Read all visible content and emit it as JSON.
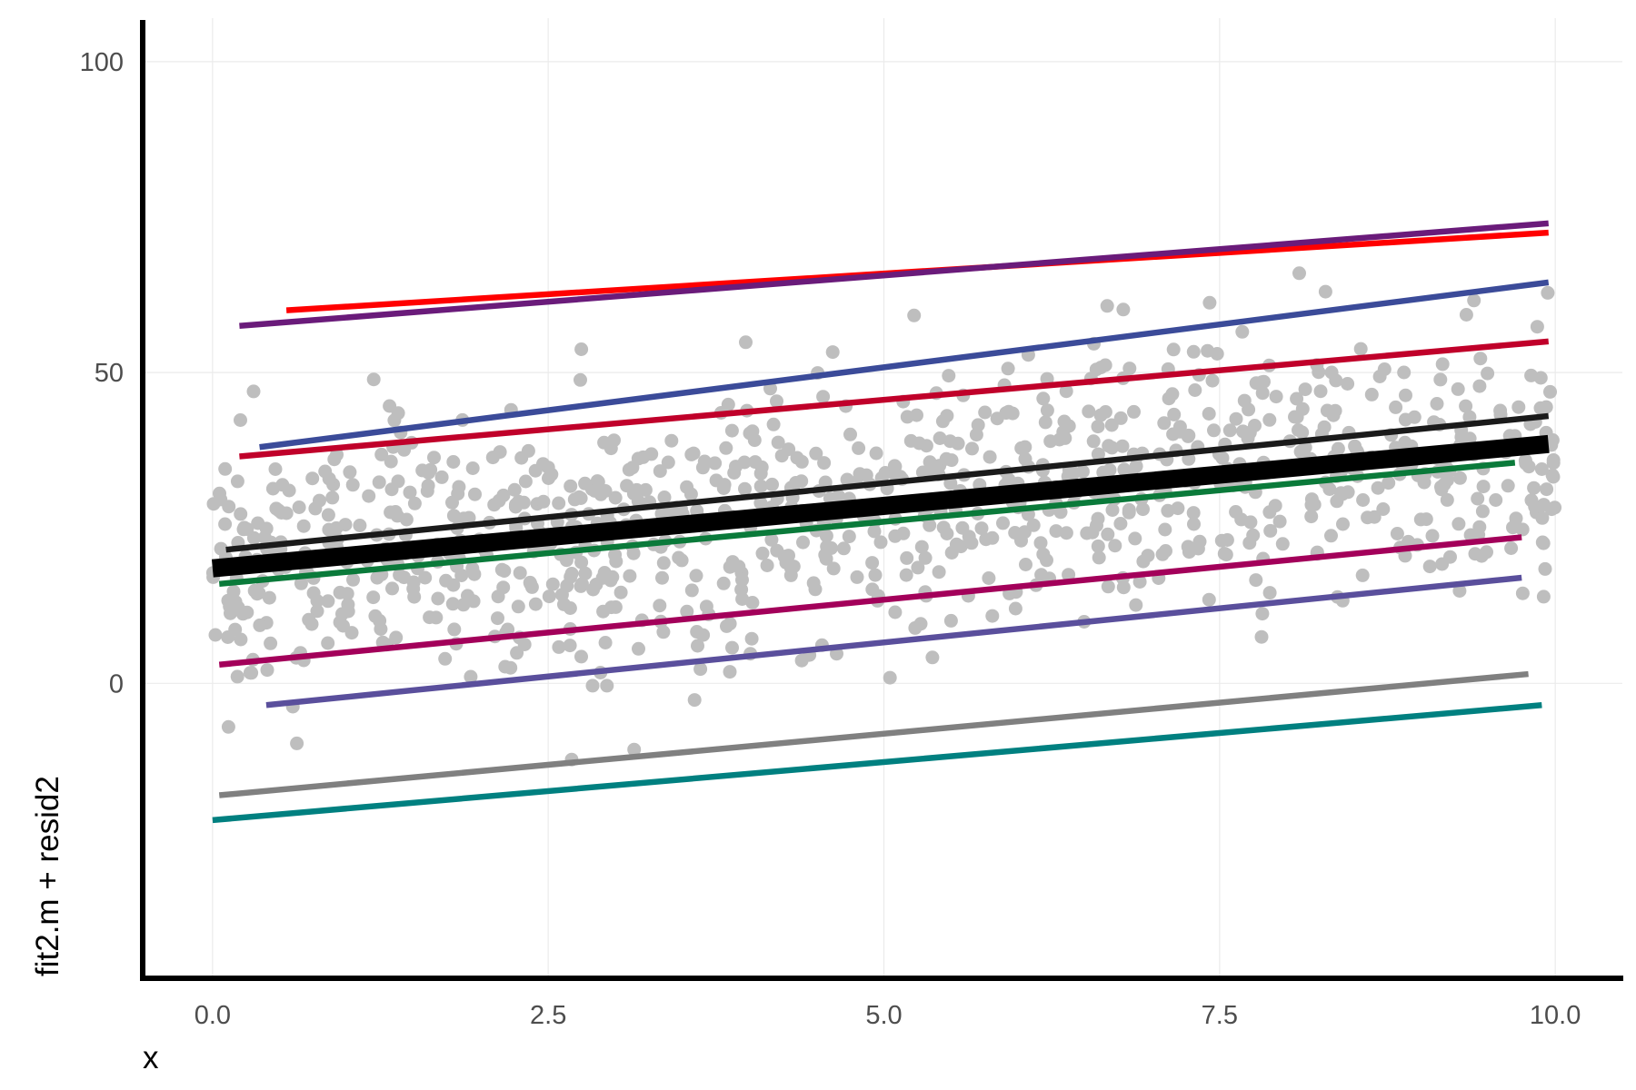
{
  "chart_data": {
    "type": "scatter",
    "title": "",
    "xlabel": "x",
    "ylabel": "fit2.m + resid2",
    "xlim": [
      -0.5,
      10.5
    ],
    "ylim": [
      -47,
      107
    ],
    "grid": true,
    "legend": "none",
    "x_ticks": [
      {
        "value": 0,
        "label": "0.0"
      },
      {
        "value": 2.5,
        "label": "2.5"
      },
      {
        "value": 5,
        "label": "5.0"
      },
      {
        "value": 7.5,
        "label": "7.5"
      },
      {
        "value": 10,
        "label": "10.0"
      }
    ],
    "y_ticks": [
      {
        "value": 0,
        "label": "0"
      },
      {
        "value": 50,
        "label": "50"
      },
      {
        "value": 100,
        "label": "100"
      }
    ],
    "point_color": "#bebebe",
    "points_count": 1000,
    "points_spread_sd": 11,
    "lines": [
      {
        "color": "#ff0000",
        "x": [
          0.55,
          9.95
        ],
        "y": [
          60,
          72.5
        ],
        "thick": false
      },
      {
        "color": "#6a1b7a",
        "x": [
          0.2,
          9.95
        ],
        "y": [
          57.5,
          74
        ],
        "thick": false
      },
      {
        "color": "#3b4b99",
        "x": [
          0.35,
          9.95
        ],
        "y": [
          38,
          64.5
        ],
        "thick": false
      },
      {
        "color": "#c0002a",
        "x": [
          0.2,
          9.95
        ],
        "y": [
          36.5,
          55
        ],
        "thick": false
      },
      {
        "color": "#1a1a1a",
        "x": [
          0.1,
          9.95
        ],
        "y": [
          21.5,
          43
        ],
        "thick": false
      },
      {
        "color": "#000000",
        "x": [
          0.0,
          9.95
        ],
        "y": [
          18.5,
          38.5
        ],
        "thick": true
      },
      {
        "color": "#0a7a3a",
        "x": [
          0.05,
          9.7
        ],
        "y": [
          16,
          35.5
        ],
        "thick": false
      },
      {
        "color": "#a3005a",
        "x": [
          0.05,
          9.75
        ],
        "y": [
          3,
          23.5
        ],
        "thick": false
      },
      {
        "color": "#5a4f9c",
        "x": [
          0.4,
          9.75
        ],
        "y": [
          -3.5,
          17
        ],
        "thick": false
      },
      {
        "color": "#808080",
        "x": [
          0.05,
          9.8
        ],
        "y": [
          -18,
          1.5
        ],
        "thick": false
      },
      {
        "color": "#008080",
        "x": [
          0.0,
          9.9
        ],
        "y": [
          -22,
          -3.5
        ],
        "thick": false
      }
    ]
  }
}
